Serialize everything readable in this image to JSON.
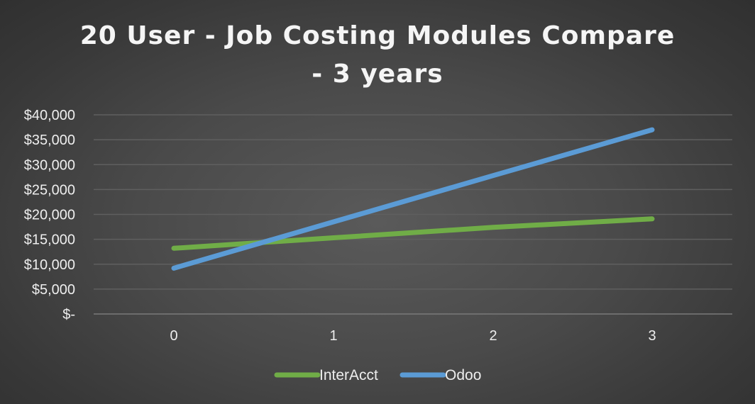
{
  "chart_data": {
    "type": "line",
    "title_lines": [
      "20 User - Job Costing Modules Compare",
      "- 3 years"
    ],
    "x": [
      0,
      1,
      2,
      3
    ],
    "x_tick_labels": [
      "0",
      "1",
      "2",
      "3"
    ],
    "y_tick_labels": [
      "$-",
      "$5,000",
      "$10,000",
      "$15,000",
      "$20,000",
      "$25,000",
      "$30,000",
      "$35,000",
      "$40,000"
    ],
    "ylim": [
      0,
      40000
    ],
    "y_step": 5000,
    "grid": true,
    "legend_position": "bottom",
    "series": [
      {
        "name": "InterAcct",
        "color": "#70ad47",
        "values": [
          13200,
          15300,
          17400,
          19100
        ]
      },
      {
        "name": "Odoo",
        "color": "#5b9bd5",
        "values": [
          9200,
          18500,
          27800,
          37000
        ]
      }
    ]
  }
}
